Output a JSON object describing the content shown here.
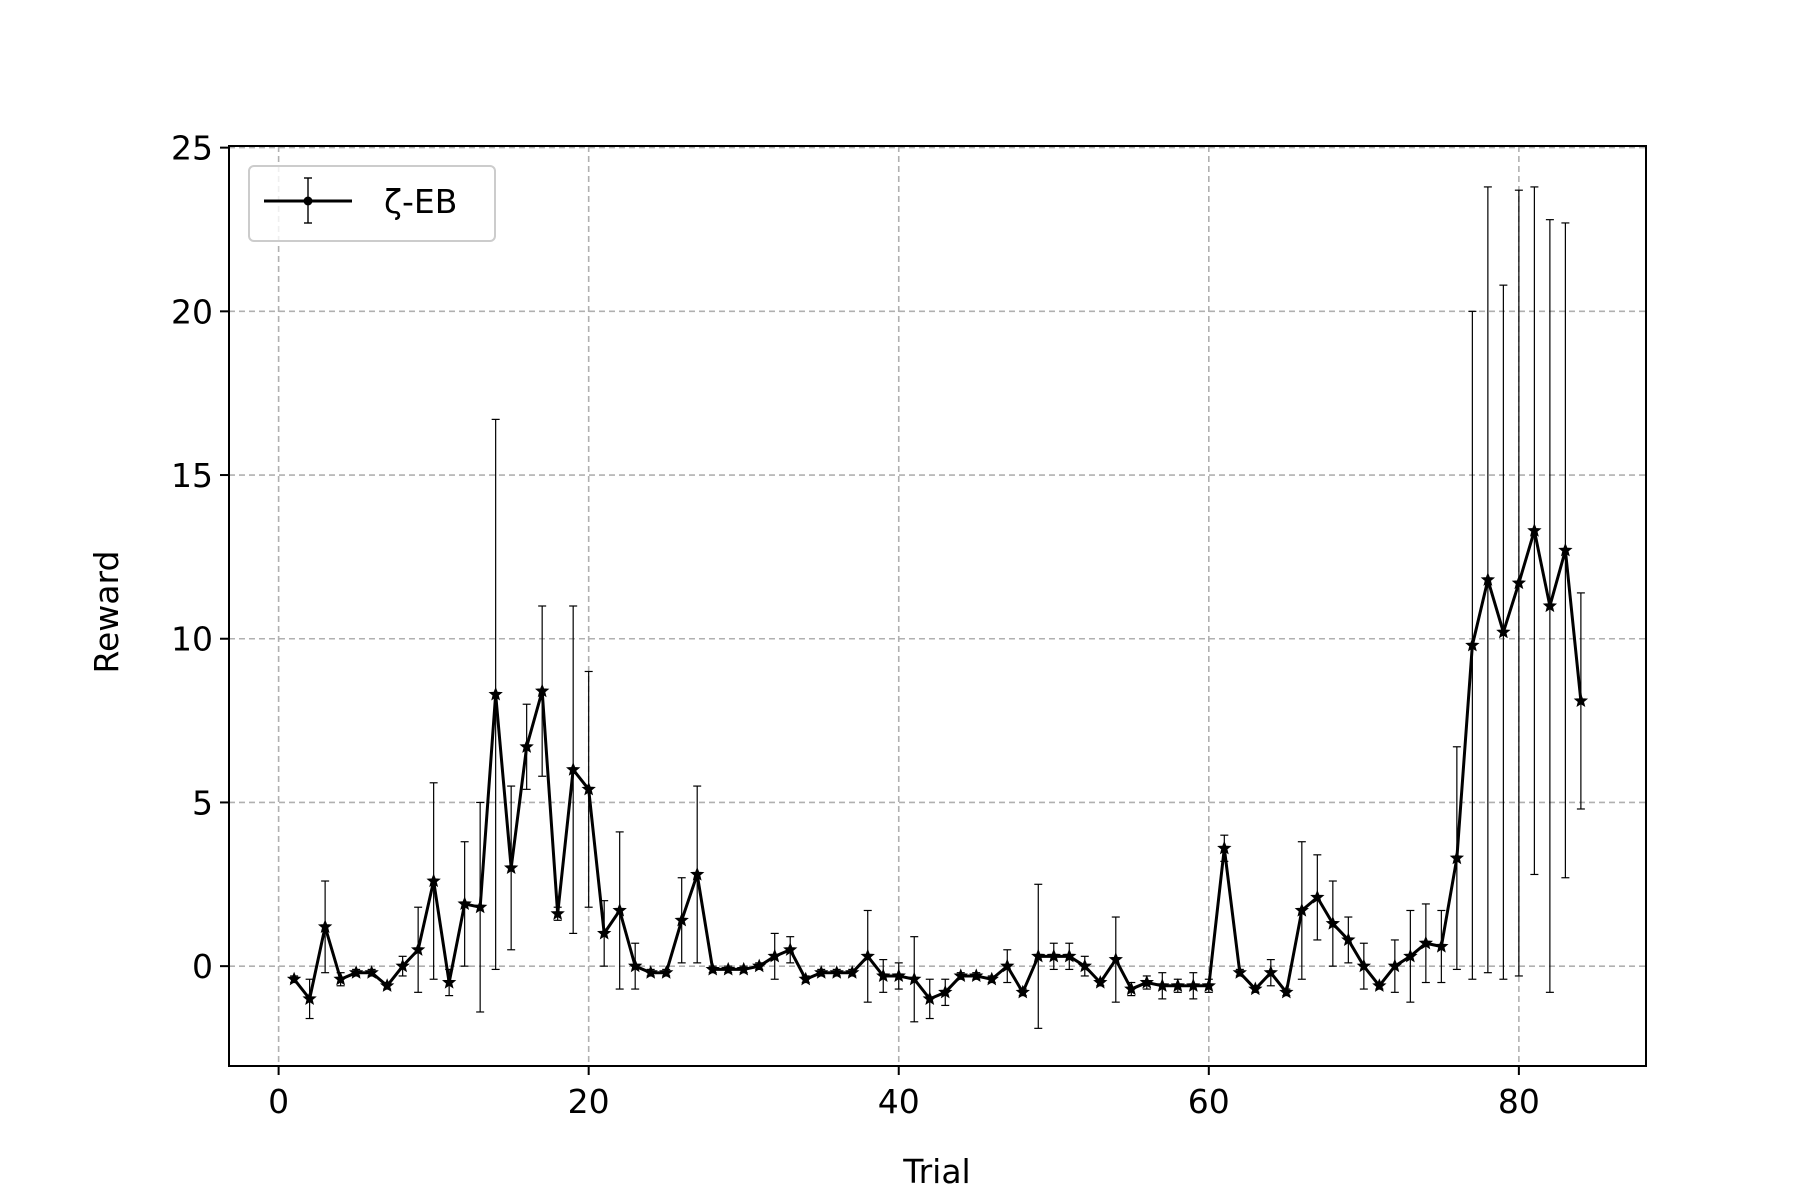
{
  "chart_data": {
    "type": "line",
    "xlabel": "Trial",
    "ylabel": "Reward",
    "xlim": [
      -3.2,
      88.2
    ],
    "ylim": [
      -3.05,
      25.05
    ],
    "xticks": [
      0,
      20,
      40,
      60,
      80
    ],
    "yticks": [
      0,
      5,
      10,
      15,
      20,
      25
    ],
    "grid": true,
    "legend_position": "top-left",
    "series": [
      {
        "name": "ζ-EB",
        "color": "#000000",
        "marker": "star",
        "x": [
          1,
          2,
          3,
          4,
          5,
          6,
          7,
          8,
          9,
          10,
          11,
          12,
          13,
          14,
          15,
          16,
          17,
          18,
          19,
          20,
          21,
          22,
          23,
          24,
          25,
          26,
          27,
          28,
          29,
          30,
          31,
          32,
          33,
          34,
          35,
          36,
          37,
          38,
          39,
          40,
          41,
          42,
          43,
          44,
          45,
          46,
          47,
          48,
          49,
          50,
          51,
          52,
          53,
          54,
          55,
          56,
          57,
          58,
          59,
          60,
          61,
          62,
          63,
          64,
          65,
          66,
          67,
          68,
          69,
          70,
          71,
          72,
          73,
          74,
          75,
          76,
          77,
          78,
          79,
          80,
          81,
          82,
          83,
          84
        ],
        "y": [
          -0.4,
          -1.0,
          1.2,
          -0.4,
          -0.2,
          -0.2,
          -0.6,
          0.0,
          0.5,
          2.6,
          -0.5,
          1.9,
          1.8,
          8.3,
          3.0,
          6.7,
          8.4,
          1.6,
          6.0,
          5.4,
          1.0,
          1.7,
          0.0,
          -0.2,
          -0.2,
          1.4,
          2.8,
          -0.1,
          -0.1,
          -0.1,
          0.0,
          0.3,
          0.5,
          -0.4,
          -0.2,
          -0.2,
          -0.2,
          0.3,
          -0.3,
          -0.3,
          -0.4,
          -1.0,
          -0.8,
          -0.3,
          -0.3,
          -0.4,
          0.0,
          -0.8,
          0.3,
          0.3,
          0.3,
          0.0,
          -0.5,
          0.2,
          -0.7,
          -0.5,
          -0.6,
          -0.6,
          -0.6,
          -0.6,
          3.6,
          -0.2,
          -0.7,
          -0.2,
          -0.8,
          1.7,
          2.1,
          1.3,
          0.8,
          0.0,
          -0.6,
          0.0,
          0.3,
          0.7,
          0.6,
          3.3,
          9.8,
          11.8,
          10.2,
          11.7,
          13.3,
          11.0,
          12.7,
          8.1
        ],
        "err": [
          0.1,
          0.6,
          1.4,
          0.2,
          0.1,
          0.1,
          0.1,
          0.3,
          1.3,
          3.0,
          0.4,
          1.9,
          3.2,
          8.4,
          2.5,
          1.3,
          2.6,
          0.2,
          5.0,
          3.6,
          1.0,
          2.4,
          0.7,
          0.1,
          0.1,
          1.3,
          2.7,
          0.1,
          0.1,
          0.1,
          0.1,
          0.7,
          0.4,
          0.1,
          0.1,
          0.1,
          0.1,
          1.4,
          0.5,
          0.4,
          1.3,
          0.6,
          0.4,
          0.1,
          0.1,
          0.1,
          0.5,
          0.1,
          2.2,
          0.4,
          0.4,
          0.3,
          0.1,
          1.3,
          0.2,
          0.2,
          0.4,
          0.2,
          0.4,
          0.2,
          0.4,
          0.1,
          0.1,
          0.4,
          0.1,
          2.1,
          1.3,
          1.3,
          0.7,
          0.7,
          0.1,
          0.8,
          1.4,
          1.2,
          1.1,
          3.4,
          10.2,
          12.0,
          10.6,
          12.0,
          10.5,
          11.8,
          10.0,
          3.3
        ]
      }
    ]
  }
}
